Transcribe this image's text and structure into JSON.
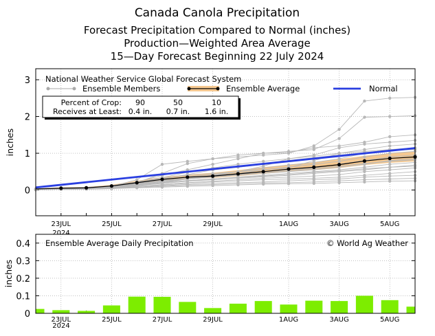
{
  "header": {
    "title": "Canada Canola Precipitation",
    "line2": "Forecast Precipitation Compared to Normal (inches)",
    "line3": "Production—Weighted Area Average",
    "line4": "15—Day Forecast Beginning 22 July 2024"
  },
  "x_labels": [
    {
      "day": 1,
      "text": "23JUL"
    },
    {
      "day": 3,
      "text": "25JUL"
    },
    {
      "day": 5,
      "text": "27JUL"
    },
    {
      "day": 7,
      "text": "29JUL"
    },
    {
      "day": 10,
      "text": "1AUG"
    },
    {
      "day": 12,
      "text": "3AUG"
    },
    {
      "day": 14,
      "text": "5AUG"
    }
  ],
  "year_label": "2024",
  "top_panel": {
    "ylabel": "inches",
    "legend_title": "National Weather Service Global Forecast System",
    "legend_members": "Ensemble Members",
    "legend_average": "Ensemble Average",
    "legend_normal": "Normal",
    "crop_table": {
      "header_label": "Percent of Crop:",
      "row_label": "Receives at Least:",
      "percents": [
        "90",
        "50",
        "10"
      ],
      "amounts": [
        "0.4 in.",
        "0.7 in.",
        "1.6 in."
      ]
    }
  },
  "bottom_panel": {
    "title": "Ensemble Average Daily Precipitation",
    "credit": "© World Ag Weather",
    "ylabel": "inches"
  },
  "colors": {
    "normal": "#2a3fe0",
    "average": "#000000",
    "band": "#f5c890",
    "members": "#b8b8b8",
    "bars": "#7ded00"
  },
  "chart_data": [
    {
      "type": "line",
      "title": "Canada Canola Precipitation",
      "ylabel": "inches",
      "xlim": [
        0,
        15
      ],
      "ylim": [
        -0.7,
        3.3
      ],
      "yticks": [
        0,
        1,
        2,
        3
      ],
      "grid": true,
      "legend_position": "top-left",
      "series": [
        {
          "name": "Ensemble Average",
          "x": [
            0,
            1,
            2,
            3,
            4,
            5,
            6,
            7,
            8,
            9,
            10,
            11,
            12,
            13,
            14,
            15
          ],
          "y": [
            0.03,
            0.05,
            0.06,
            0.11,
            0.2,
            0.29,
            0.35,
            0.38,
            0.44,
            0.5,
            0.57,
            0.62,
            0.69,
            0.79,
            0.86,
            0.9
          ]
        },
        {
          "name": "Normal",
          "x": [
            0,
            15
          ],
          "y": [
            0.07,
            1.14
          ]
        }
      ],
      "band": {
        "x": [
          0,
          1,
          2,
          3,
          4,
          5,
          6,
          7,
          8,
          9,
          10,
          11,
          12,
          13,
          14,
          15
        ],
        "low": [
          0.02,
          0.04,
          0.05,
          0.09,
          0.16,
          0.24,
          0.3,
          0.33,
          0.38,
          0.44,
          0.5,
          0.54,
          0.6,
          0.68,
          0.74,
          0.78
        ],
        "high": [
          0.04,
          0.07,
          0.08,
          0.14,
          0.25,
          0.35,
          0.42,
          0.47,
          0.54,
          0.62,
          0.69,
          0.76,
          0.84,
          0.93,
          1.0,
          1.05
        ]
      },
      "members": [
        [
          0.02,
          0.04,
          0.05,
          0.1,
          0.28,
          0.7,
          0.78,
          0.85,
          0.9,
          0.95,
          1.0,
          1.2,
          1.65,
          2.42,
          2.5,
          2.52
        ],
        [
          0.02,
          0.04,
          0.06,
          0.12,
          0.22,
          0.4,
          0.55,
          0.7,
          0.85,
          1.0,
          1.05,
          1.1,
          1.4,
          1.98,
          2.0,
          2.02
        ],
        [
          0.03,
          0.05,
          0.06,
          0.1,
          0.2,
          0.45,
          0.72,
          0.85,
          0.95,
          1.0,
          1.02,
          1.15,
          1.2,
          1.3,
          1.45,
          1.5
        ],
        [
          0.03,
          0.05,
          0.07,
          0.11,
          0.2,
          0.32,
          0.4,
          0.45,
          0.5,
          0.65,
          0.85,
          0.95,
          1.15,
          1.25,
          1.3,
          1.35
        ],
        [
          0.02,
          0.04,
          0.06,
          0.1,
          0.18,
          0.28,
          0.36,
          0.42,
          0.5,
          0.55,
          0.6,
          0.8,
          1.0,
          1.1,
          1.2,
          1.25
        ],
        [
          0.02,
          0.04,
          0.05,
          0.08,
          0.15,
          0.22,
          0.3,
          0.4,
          0.5,
          0.6,
          0.68,
          0.75,
          0.85,
          1.0,
          1.1,
          1.15
        ],
        [
          0.02,
          0.03,
          0.05,
          0.09,
          0.17,
          0.25,
          0.3,
          0.35,
          0.45,
          0.55,
          0.62,
          0.7,
          0.78,
          0.9,
          1.0,
          1.05
        ],
        [
          0.01,
          0.03,
          0.04,
          0.07,
          0.12,
          0.2,
          0.3,
          0.4,
          0.45,
          0.5,
          0.55,
          0.6,
          0.7,
          0.8,
          0.9,
          0.95
        ],
        [
          0.02,
          0.04,
          0.05,
          0.09,
          0.16,
          0.26,
          0.33,
          0.36,
          0.4,
          0.45,
          0.5,
          0.55,
          0.62,
          0.7,
          0.8,
          0.85
        ],
        [
          0.01,
          0.03,
          0.04,
          0.07,
          0.14,
          0.2,
          0.26,
          0.3,
          0.35,
          0.4,
          0.45,
          0.5,
          0.55,
          0.62,
          0.7,
          0.75
        ],
        [
          0.01,
          0.02,
          0.04,
          0.08,
          0.13,
          0.18,
          0.24,
          0.28,
          0.32,
          0.36,
          0.4,
          0.45,
          0.5,
          0.55,
          0.62,
          0.65
        ],
        [
          0.01,
          0.02,
          0.03,
          0.06,
          0.1,
          0.15,
          0.2,
          0.24,
          0.28,
          0.32,
          0.35,
          0.38,
          0.42,
          0.5,
          0.55,
          0.6
        ],
        [
          0.01,
          0.02,
          0.03,
          0.05,
          0.1,
          0.14,
          0.18,
          0.22,
          0.25,
          0.28,
          0.3,
          0.32,
          0.35,
          0.4,
          0.45,
          0.5
        ],
        [
          0.01,
          0.02,
          0.03,
          0.05,
          0.08,
          0.12,
          0.15,
          0.18,
          0.2,
          0.22,
          0.25,
          0.28,
          0.3,
          0.35,
          0.38,
          0.4
        ],
        [
          0.01,
          0.02,
          0.03,
          0.04,
          0.07,
          0.1,
          0.13,
          0.15,
          0.17,
          0.19,
          0.2,
          0.22,
          0.25,
          0.28,
          0.3,
          0.32
        ],
        [
          0.01,
          0.02,
          0.02,
          0.04,
          0.06,
          0.08,
          0.1,
          0.12,
          0.14,
          0.16,
          0.17,
          0.18,
          0.2,
          0.22,
          0.24,
          0.25
        ],
        [
          0.02,
          0.04,
          0.06,
          0.1,
          0.2,
          0.34,
          0.48,
          0.6,
          0.7,
          0.78,
          0.85,
          0.92,
          1.0,
          1.05,
          1.1,
          1.12
        ],
        [
          0.02,
          0.03,
          0.05,
          0.09,
          0.18,
          0.3,
          0.42,
          0.55,
          0.62,
          0.7,
          0.8,
          0.88,
          0.95,
          1.02,
          1.08,
          1.1
        ],
        [
          0.01,
          0.03,
          0.04,
          0.08,
          0.15,
          0.24,
          0.3,
          0.36,
          0.42,
          0.48,
          0.52,
          0.58,
          0.65,
          0.72,
          0.78,
          0.82
        ],
        [
          0.01,
          0.02,
          0.04,
          0.07,
          0.12,
          0.18,
          0.24,
          0.3,
          0.34,
          0.38,
          0.42,
          0.48,
          0.52,
          0.58,
          0.62,
          0.68
        ]
      ]
    },
    {
      "type": "bar",
      "title": "Ensemble Average Daily Precipitation",
      "ylabel": "inches",
      "ylim": [
        0,
        0.45
      ],
      "yticks": [
        0,
        0.1,
        0.2,
        0.3,
        0.4
      ],
      "grid": true,
      "x": [
        0,
        1,
        2,
        3,
        4,
        5,
        6,
        7,
        8,
        9,
        10,
        11,
        12,
        13,
        14,
        15
      ],
      "values": [
        0.025,
        0.018,
        0.014,
        0.045,
        0.095,
        0.094,
        0.065,
        0.03,
        0.055,
        0.07,
        0.05,
        0.072,
        0.07,
        0.1,
        0.075,
        0.038
      ]
    }
  ]
}
